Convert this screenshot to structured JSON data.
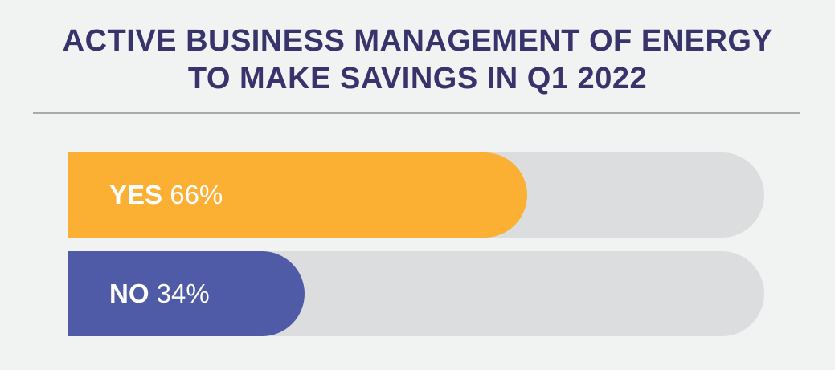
{
  "chart_data": {
    "type": "bar",
    "orientation": "horizontal",
    "title_lines": [
      "ACTIVE BUSINESS MANAGEMENT OF ENERGY",
      "TO MAKE SAVINGS IN Q1 2022"
    ],
    "categories": [
      "YES",
      "NO"
    ],
    "values": [
      66,
      34
    ],
    "value_labels": [
      "66%",
      "34%"
    ],
    "xlim": [
      0,
      100
    ],
    "colors": [
      "#fbb034",
      "#4f5ba6"
    ],
    "track_color": "#dcdddf",
    "title_color": "#38346b",
    "background": "#f1f2f2"
  }
}
